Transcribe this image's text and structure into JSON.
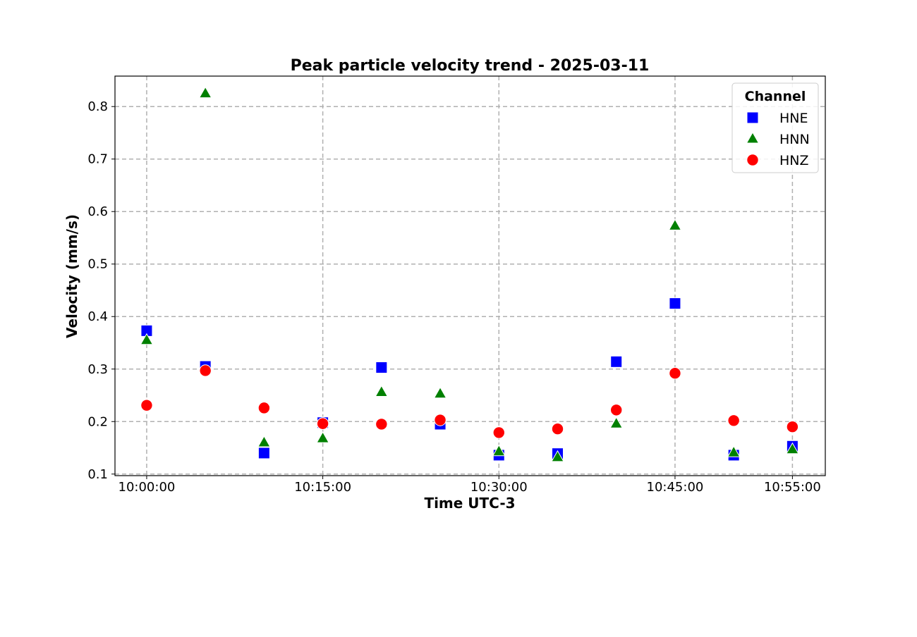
{
  "chart_data": {
    "type": "scatter",
    "title": "Peak particle velocity trend - 2025-03-11",
    "xlabel": "Time UTC-3",
    "ylabel": "Velocity (mm/s)",
    "x_ticks": [
      "10:00:00",
      "10:15:00",
      "10:30:00",
      "10:45:00",
      "10:55:00"
    ],
    "x_tick_minutes": [
      0,
      15,
      30,
      45,
      55
    ],
    "xlim_minutes": [
      -2.7,
      57.8
    ],
    "y_ticks": [
      0.1,
      0.2,
      0.3,
      0.4,
      0.5,
      0.6,
      0.7,
      0.8
    ],
    "ylim": [
      0.097,
      0.858
    ],
    "grid": true,
    "legend": {
      "title": "Channel",
      "placement": "top-right"
    },
    "x": [
      "10:00:00",
      "10:05:00",
      "10:10:00",
      "10:15:00",
      "10:20:00",
      "10:25:00",
      "10:30:00",
      "10:35:00",
      "10:40:00",
      "10:45:00",
      "10:50:00",
      "10:55:00"
    ],
    "x_minutes": [
      0,
      5,
      10,
      15,
      20,
      25,
      30,
      35,
      40,
      45,
      50,
      55
    ],
    "series": [
      {
        "name": "HNE",
        "marker": "square",
        "color": "#0000ff",
        "values": [
          0.373,
          0.305,
          0.14,
          0.198,
          0.303,
          0.195,
          0.136,
          0.139,
          0.314,
          0.425,
          0.136,
          0.153
        ]
      },
      {
        "name": "HNN",
        "marker": "triangle",
        "color": "#008000",
        "values": [
          0.355,
          null,
          0.16,
          0.168,
          0.256,
          0.253,
          0.143,
          0.132,
          0.196,
          0.573,
          0.141,
          0.147
        ]
      },
      {
        "name": "HNZ",
        "marker": "circle",
        "color": "#ff0000",
        "values": [
          0.231,
          0.297,
          0.226,
          0.196,
          0.195,
          0.203,
          0.179,
          0.186,
          0.222,
          0.292,
          0.202,
          0.19
        ]
      }
    ],
    "extra_points": [
      {
        "series": "HNN",
        "x": "10:05:00",
        "x_minutes": 5,
        "value": 0.825
      }
    ]
  }
}
